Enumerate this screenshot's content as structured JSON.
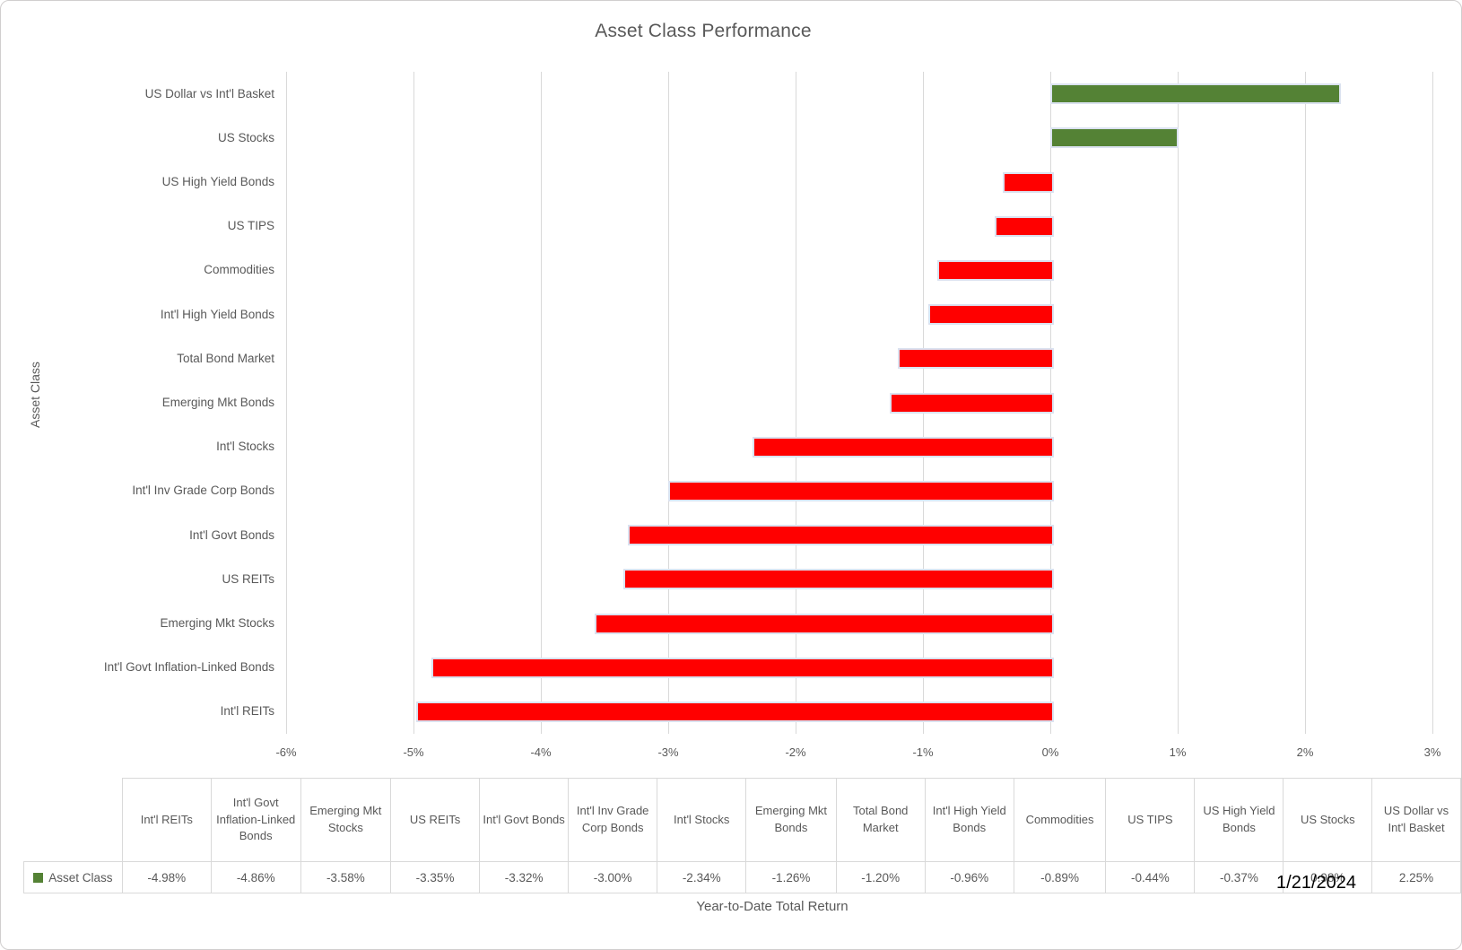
{
  "title": "Asset Class Performance",
  "y_axis_title": "Asset Class",
  "x_axis_title": "Year-to-Date Total Return",
  "legend_label": "Asset Class",
  "date_label": "1/21/2024",
  "colors": {
    "positive_bar": "#548235",
    "negative_bar": "#ff0000",
    "bar_border": "#dbe2f0",
    "gridline": "#d9d9d9",
    "text": "#595959",
    "legend_key": "#548235"
  },
  "chart_data": {
    "type": "bar",
    "orientation": "horizontal",
    "title": "Asset Class Performance",
    "xlabel": "Year-to-Date Total Return",
    "ylabel": "Asset Class",
    "xlim": [
      -6,
      3
    ],
    "x_tick_labels": [
      "-6%",
      "-5%",
      "-4%",
      "-3%",
      "-2%",
      "-1%",
      "0%",
      "1%",
      "2%",
      "3%"
    ],
    "grid": true,
    "legend_position": "bottom-table",
    "series_name": "Asset Class",
    "rows_top_to_bottom": [
      {
        "label": "US Dollar vs Int'l Basket",
        "value": 2.25,
        "formatted": "2.25%"
      },
      {
        "label": "US Stocks",
        "value": 0.98,
        "formatted": "0.98%"
      },
      {
        "label": "US High Yield Bonds",
        "value": -0.37,
        "formatted": "-0.37%"
      },
      {
        "label": "US TIPS",
        "value": -0.44,
        "formatted": "-0.44%"
      },
      {
        "label": "Commodities",
        "value": -0.89,
        "formatted": "-0.89%"
      },
      {
        "label": "Int'l High Yield Bonds",
        "value": -0.96,
        "formatted": "-0.96%"
      },
      {
        "label": "Total Bond Market",
        "value": -1.2,
        "formatted": "-1.20%"
      },
      {
        "label": "Emerging Mkt Bonds",
        "value": -1.26,
        "formatted": "-1.26%"
      },
      {
        "label": "Int'l Stocks",
        "value": -2.34,
        "formatted": "-2.34%"
      },
      {
        "label": "Int'l Inv Grade Corp Bonds",
        "value": -3.0,
        "formatted": "-3.00%"
      },
      {
        "label": "Int'l Govt Bonds",
        "value": -3.32,
        "formatted": "-3.32%"
      },
      {
        "label": "US REITs",
        "value": -3.35,
        "formatted": "-3.35%"
      },
      {
        "label": "Emerging Mkt Stocks",
        "value": -3.58,
        "formatted": "-3.58%"
      },
      {
        "label": "Int'l Govt Inflation-Linked Bonds",
        "value": -4.86,
        "formatted": "-4.86%"
      },
      {
        "label": "Int'l REITs",
        "value": -4.98,
        "formatted": "-4.98%"
      }
    ],
    "table_note": "bottom data table lists the same rows in ascending order (left to right)"
  }
}
